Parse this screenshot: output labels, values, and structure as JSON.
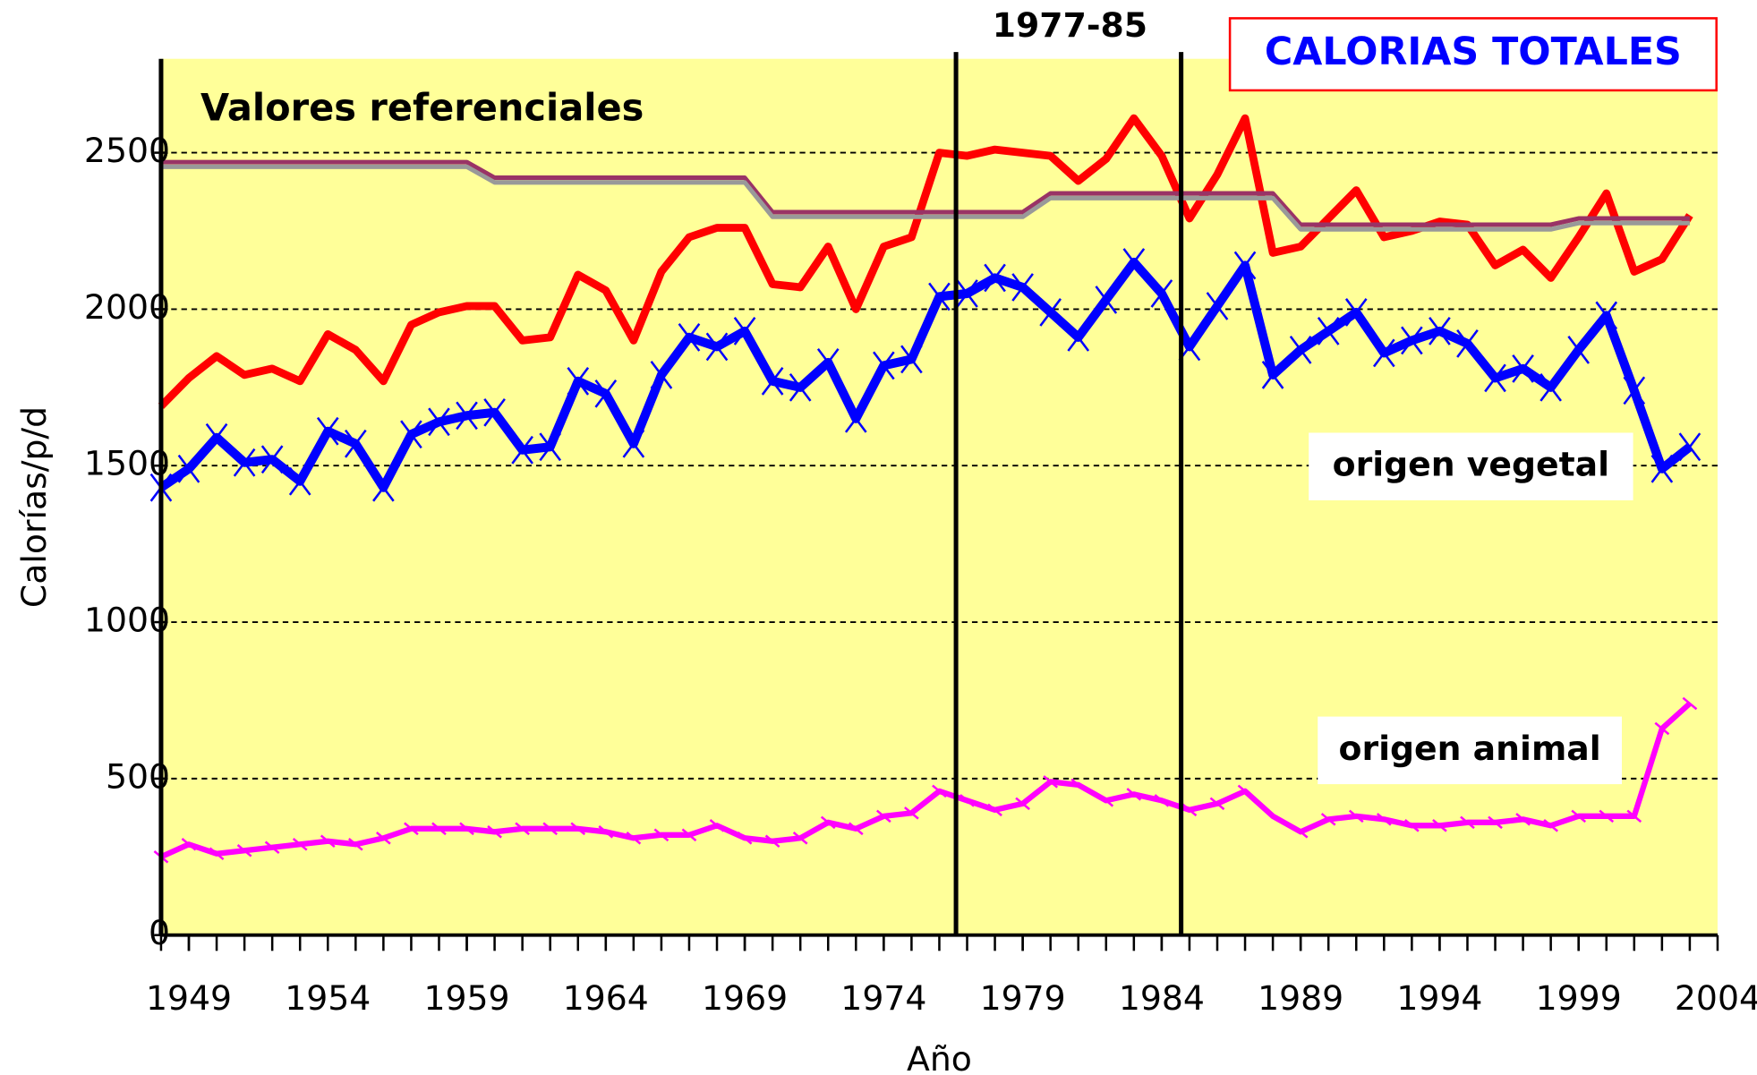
{
  "chart_data": {
    "type": "line",
    "title": "CALORIAS TOTALES",
    "x_label": "Año",
    "y_label": "Calorías/p/d",
    "annotations": {
      "period": "1977-85",
      "reference": "Valores referenciales",
      "vegetal": "origen vegetal",
      "animal": "origen animal"
    },
    "period_lines": [
      1976.6,
      1984.7
    ],
    "x": [
      1948,
      1949,
      1950,
      1951,
      1952,
      1953,
      1954,
      1955,
      1956,
      1957,
      1958,
      1959,
      1960,
      1961,
      1962,
      1963,
      1964,
      1965,
      1966,
      1967,
      1968,
      1969,
      1970,
      1971,
      1972,
      1973,
      1974,
      1975,
      1976,
      1977,
      1978,
      1979,
      1980,
      1981,
      1982,
      1983,
      1984,
      1985,
      1986,
      1987,
      1988,
      1989,
      1990,
      1991,
      1992,
      1993,
      1994,
      1995,
      1996,
      1997,
      1998,
      1999,
      2000,
      2001,
      2002,
      2003
    ],
    "series": [
      {
        "color": "#ff0000",
        "marker": "none",
        "values": [
          1690,
          1780,
          1850,
          1790,
          1810,
          1770,
          1920,
          1870,
          1770,
          1950,
          1990,
          2010,
          2010,
          1900,
          1910,
          2110,
          2060,
          1900,
          2120,
          2230,
          2260,
          2260,
          2080,
          2070,
          2200,
          2000,
          2200,
          2230,
          2500,
          2490,
          2510,
          2500,
          2490,
          2410,
          2480,
          2610,
          2490,
          2290,
          2430,
          2610,
          2180,
          2200,
          2290,
          2380,
          2230,
          2250,
          2280,
          2270,
          2140,
          2190,
          2100,
          2230,
          2370,
          2120,
          2160,
          2300
        ]
      },
      {
        "color": "#0000ff",
        "marker": "x",
        "values": [
          1430,
          1490,
          1590,
          1510,
          1520,
          1450,
          1610,
          1570,
          1430,
          1600,
          1640,
          1660,
          1670,
          1550,
          1560,
          1770,
          1730,
          1570,
          1790,
          1910,
          1880,
          1930,
          1770,
          1750,
          1830,
          1650,
          1820,
          1840,
          2040,
          2050,
          2100,
          2070,
          1990,
          1910,
          2030,
          2150,
          2050,
          1880,
          2010,
          2140,
          1790,
          1870,
          1930,
          1990,
          1860,
          1900,
          1930,
          1890,
          1780,
          1810,
          1750,
          1870,
          1980,
          1740,
          1490,
          1560
        ]
      },
      {
        "color": "#ff00ff",
        "marker": "bar",
        "values": [
          250,
          290,
          260,
          270,
          280,
          290,
          300,
          290,
          310,
          340,
          340,
          340,
          330,
          340,
          340,
          340,
          330,
          310,
          320,
          320,
          350,
          310,
          300,
          310,
          360,
          340,
          380,
          390,
          460,
          430,
          400,
          420,
          490,
          480,
          430,
          450,
          430,
          400,
          420,
          460,
          380,
          330,
          370,
          380,
          370,
          350,
          350,
          360,
          360,
          370,
          350,
          380,
          380,
          380,
          660,
          740
        ]
      },
      {
        "color": "#993366",
        "marker": "none",
        "values": [
          2470,
          2470,
          2470,
          2470,
          2470,
          2470,
          2470,
          2470,
          2470,
          2470,
          2470,
          2470,
          2420,
          2420,
          2420,
          2420,
          2420,
          2420,
          2420,
          2420,
          2420,
          2420,
          2310,
          2310,
          2310,
          2310,
          2310,
          2310,
          2310,
          2310,
          2310,
          2310,
          2370,
          2370,
          2370,
          2370,
          2370,
          2370,
          2370,
          2370,
          2370,
          2270,
          2270,
          2270,
          2270,
          2270,
          2270,
          2270,
          2270,
          2270,
          2270,
          2290,
          2290,
          2290,
          2290,
          2290
        ]
      },
      {
        "color": "#999999",
        "marker": "none",
        "values": [
          2455,
          2455,
          2455,
          2455,
          2455,
          2455,
          2455,
          2455,
          2455,
          2455,
          2455,
          2455,
          2405,
          2405,
          2405,
          2405,
          2405,
          2405,
          2405,
          2405,
          2405,
          2405,
          2295,
          2295,
          2295,
          2295,
          2295,
          2295,
          2295,
          2295,
          2295,
          2295,
          2355,
          2355,
          2355,
          2355,
          2355,
          2355,
          2355,
          2355,
          2355,
          2255,
          2255,
          2255,
          2255,
          2255,
          2255,
          2255,
          2255,
          2255,
          2255,
          2275,
          2275,
          2275,
          2275,
          2275
        ]
      }
    ],
    "xlim": [
      1948,
      2004
    ],
    "xticks": [
      1949,
      1954,
      1959,
      1964,
      1969,
      1974,
      1979,
      1984,
      1989,
      1994,
      1999,
      2004
    ],
    "ylim": [
      0,
      2800
    ],
    "yticks": [
      0,
      500,
      1000,
      1500,
      2000,
      2500
    ],
    "grid": true,
    "background": "#ffff99"
  }
}
